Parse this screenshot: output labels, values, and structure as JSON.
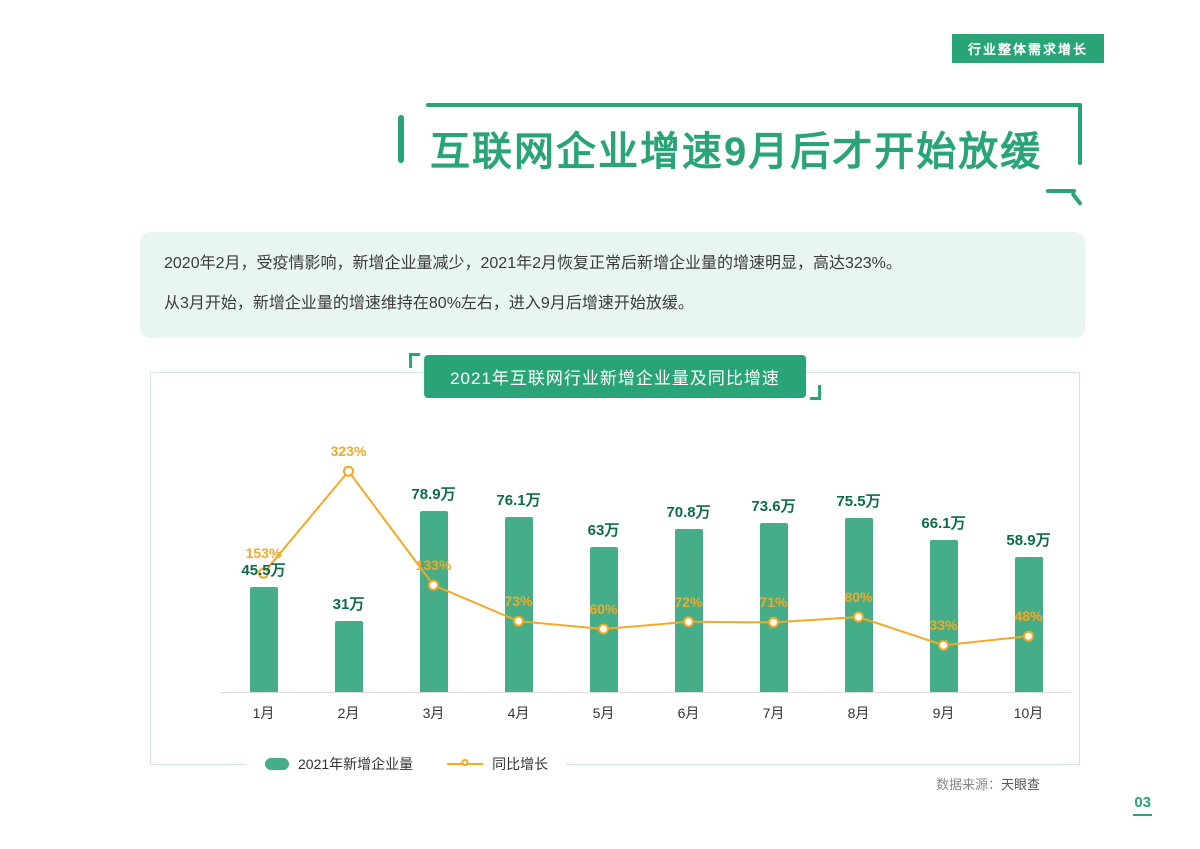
{
  "badge": {
    "label": "行业整体需求增长"
  },
  "title": "互联网企业增速9月后才开始放缓",
  "intro": {
    "line1": "2020年2月，受疫情影响，新增企业量减少，2021年2月恢复正常后新增企业量的增速明显，高达323%。",
    "line2": "从3月开始，新增企业量的增速维持在80%左右，进入9月后增速开始放缓。"
  },
  "chart": {
    "title": "2021年互联网行业新增企业量及同比增速",
    "legend": [
      {
        "label": "2021年新增企业量"
      },
      {
        "label": "同比增长"
      }
    ]
  },
  "chart_data": {
    "type": "bar",
    "title": "2021年互联网行业新增企业量及同比增速",
    "categories": [
      "1月",
      "2月",
      "3月",
      "4月",
      "5月",
      "6月",
      "7月",
      "8月",
      "9月",
      "10月"
    ],
    "series": [
      {
        "name": "2021年新增企业量",
        "type": "bar",
        "unit": "万",
        "values": [
          45.5,
          31,
          78.9,
          76.1,
          63,
          70.8,
          73.6,
          75.5,
          66.1,
          58.9
        ],
        "labels": [
          "45.5万",
          "31万",
          "78.9万",
          "76.1万",
          "63万",
          "70.8万",
          "73.6万",
          "75.5万",
          "66.1万",
          "58.9万"
        ]
      },
      {
        "name": "同比增长",
        "type": "line",
        "unit": "%",
        "values": [
          153,
          323,
          133,
          73,
          60,
          72,
          71,
          80,
          33,
          48
        ],
        "labels": [
          "153%",
          "323%",
          "133%",
          "73%",
          "60%",
          "72%",
          "71%",
          "80%",
          "33%",
          "48%"
        ]
      }
    ],
    "legend_position": "bottom",
    "grid": false
  },
  "footer": {
    "source_label": "数据来源：",
    "source_value": "天眼查",
    "page_number": "03"
  },
  "colors": {
    "green": "#29a476",
    "bar_green": "#45ad88",
    "value_label": "#0d6b4a",
    "orange": "#f5a824",
    "info_bg": "#e9f6f0",
    "card_border": "#cfe8db"
  }
}
